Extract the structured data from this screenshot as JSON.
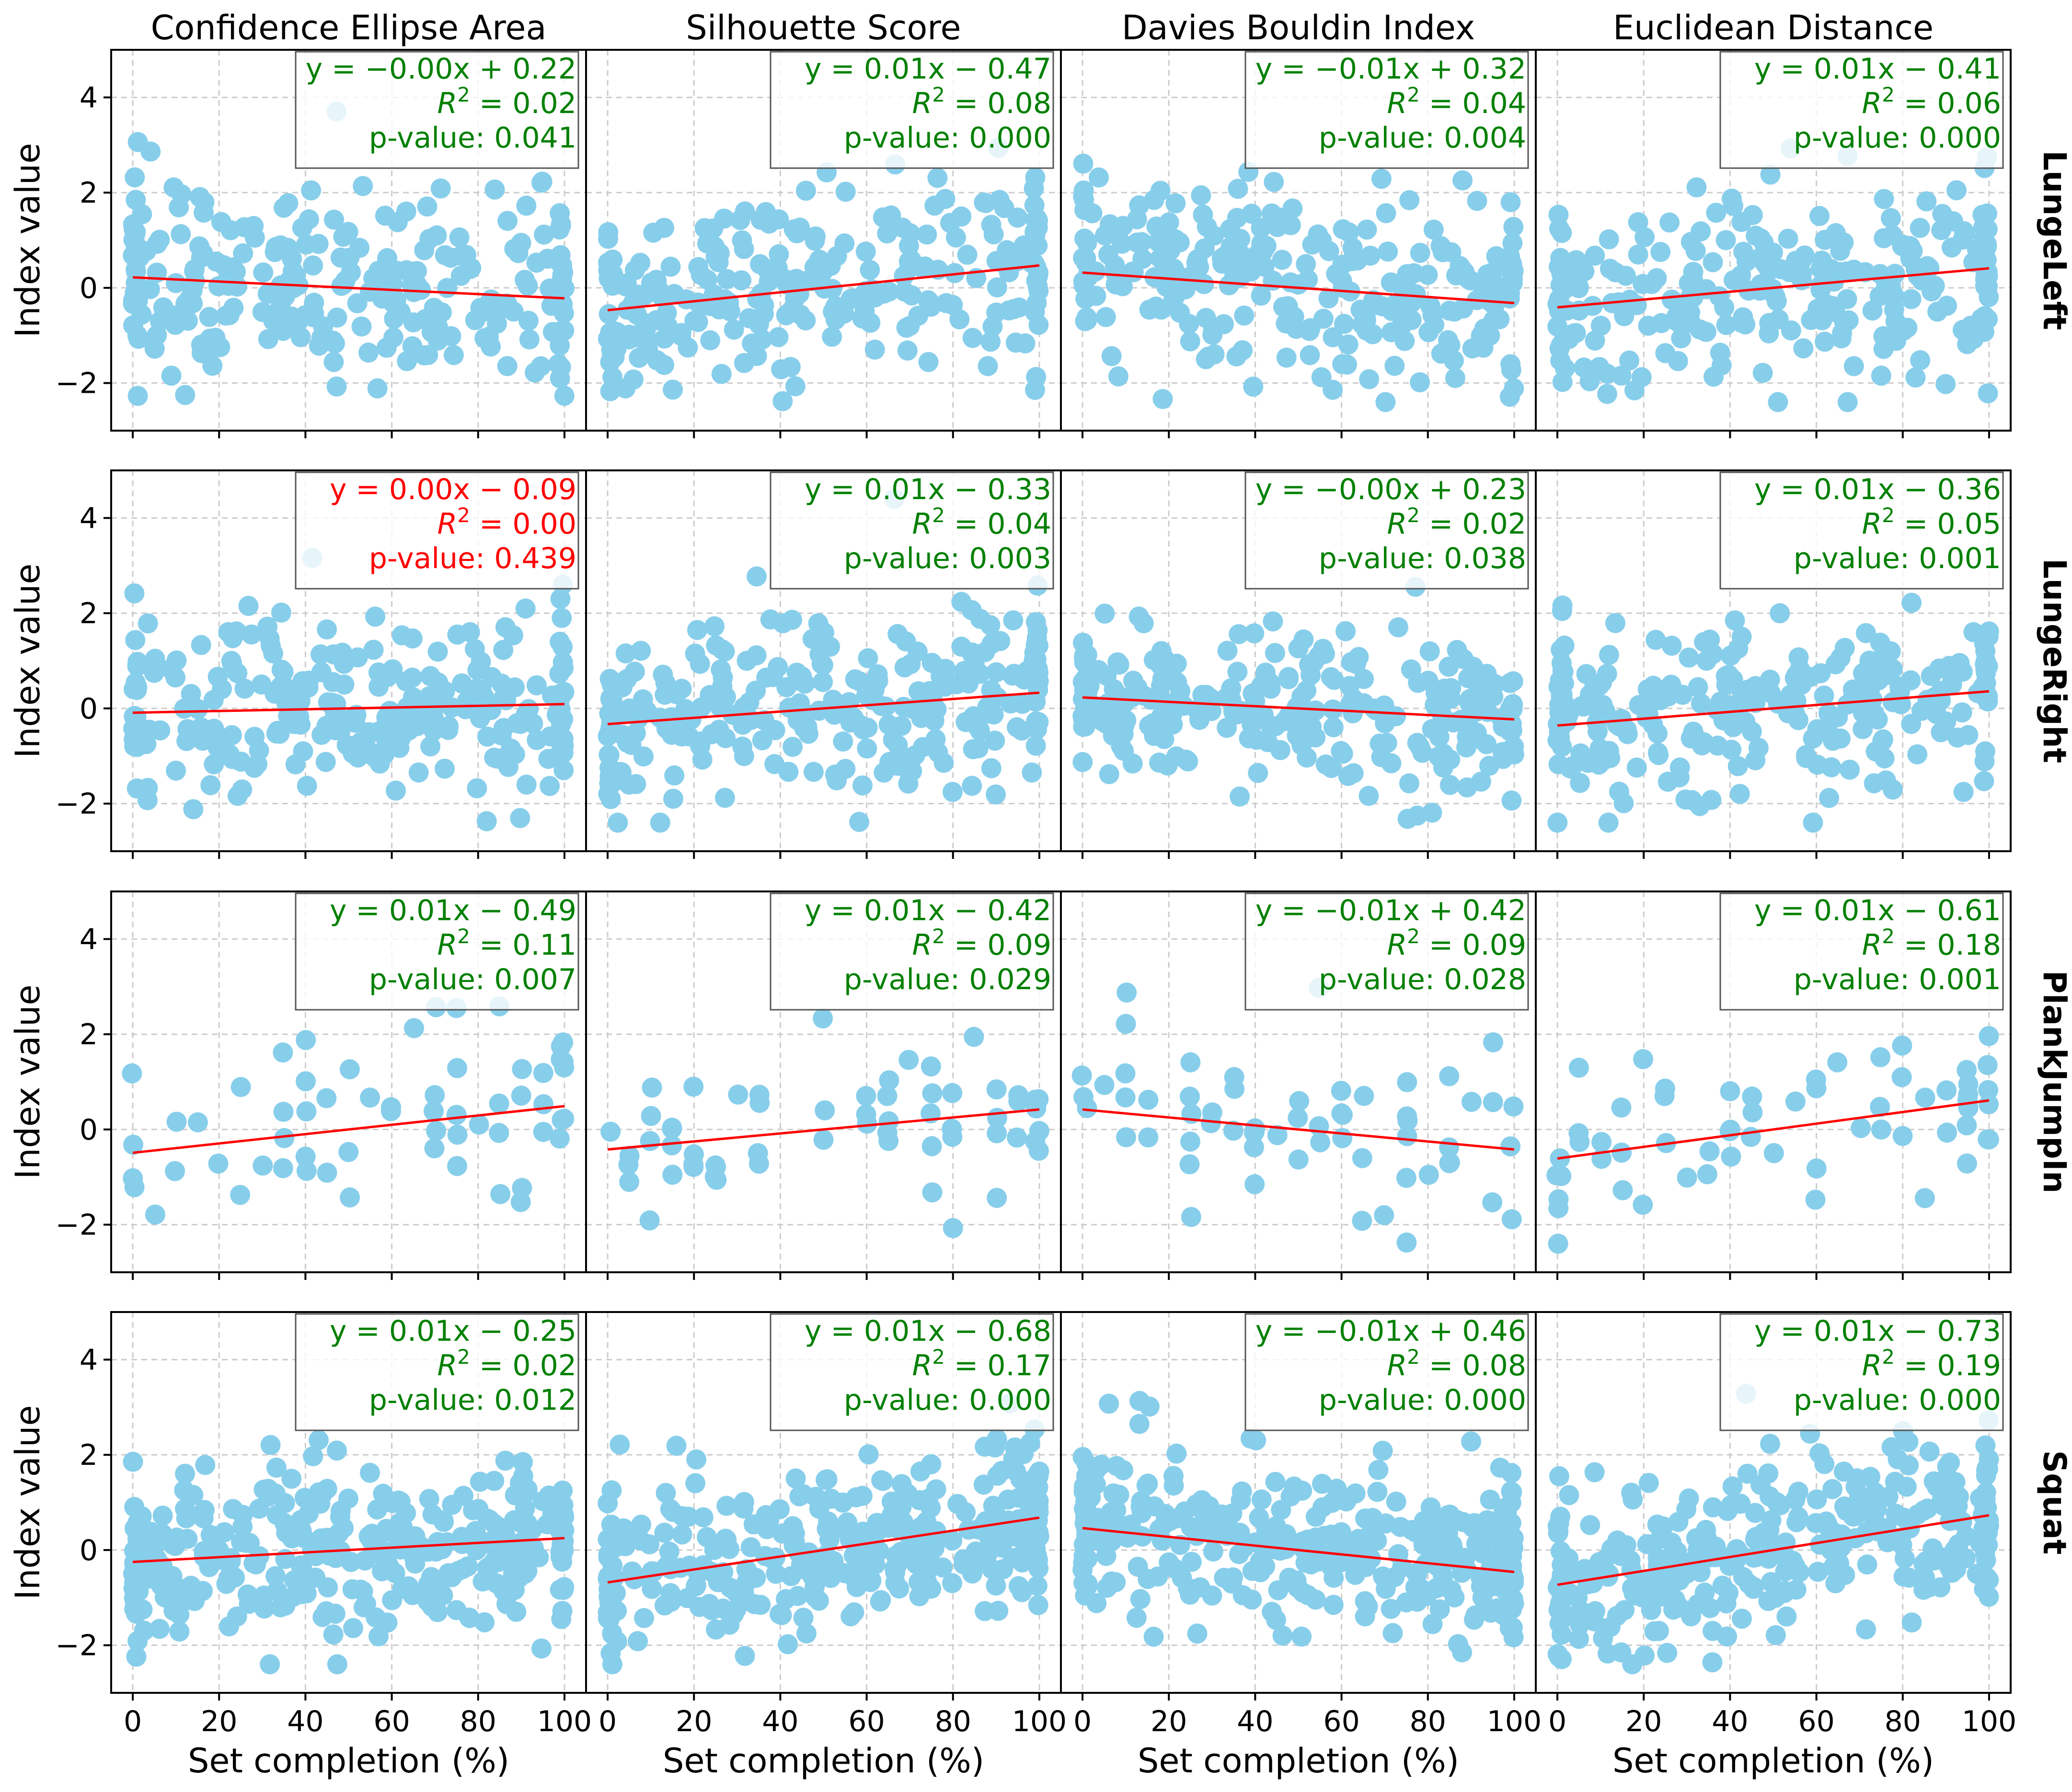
{
  "chart_data": {
    "type": "scatter",
    "title": "",
    "xlabel": "Set completion (%)",
    "ylabel": "Index value",
    "xlim": [
      -5,
      105
    ],
    "ylim": [
      -3,
      5
    ],
    "xticks": [
      0,
      20,
      40,
      60,
      80,
      100
    ],
    "yticks": [
      -2,
      0,
      2,
      4
    ],
    "grid": true,
    "point_color": "#87ceeb",
    "fit_line_color": "#ff0000",
    "significant_color": "#008000",
    "not_significant_color": "#ff0000",
    "columns": [
      "Confidence Ellipse Area",
      "Silhouette Score",
      "Davies Bouldin Index",
      "Euclidean Distance"
    ],
    "rows": [
      "LungeLeft",
      "LungeRight",
      "PlankJumpIn",
      "Squat"
    ],
    "panels": [
      {
        "row": 0,
        "col": 0,
        "slope": -0.0044,
        "intercept": 0.22,
        "equation": "y = −0.00x + 0.22",
        "r2": "0.02",
        "p_value": "p-value: 0.041",
        "significant": true,
        "n_points": 260,
        "spread": 0.95,
        "seed": 11
      },
      {
        "row": 0,
        "col": 1,
        "slope": 0.0094,
        "intercept": -0.47,
        "equation": "y = 0.01x − 0.47",
        "r2": "0.08",
        "p_value": "p-value: 0.000",
        "significant": true,
        "n_points": 260,
        "spread": 0.95,
        "seed": 12
      },
      {
        "row": 0,
        "col": 2,
        "slope": -0.0064,
        "intercept": 0.32,
        "equation": "y = −0.01x + 0.32",
        "r2": "0.04",
        "p_value": "p-value: 0.004",
        "significant": true,
        "n_points": 260,
        "spread": 0.9,
        "seed": 13
      },
      {
        "row": 0,
        "col": 3,
        "slope": 0.0082,
        "intercept": -0.41,
        "equation": "y = 0.01x − 0.41",
        "r2": "0.06",
        "p_value": "p-value: 0.000",
        "significant": true,
        "n_points": 260,
        "spread": 0.95,
        "seed": 14
      },
      {
        "row": 1,
        "col": 0,
        "slope": 0.0018,
        "intercept": -0.09,
        "equation": "y = 0.00x − 0.09",
        "r2": "0.00",
        "p_value": "p-value: 0.439",
        "significant": false,
        "n_points": 260,
        "spread": 0.95,
        "seed": 21
      },
      {
        "row": 1,
        "col": 1,
        "slope": 0.0066,
        "intercept": -0.33,
        "equation": "y = 0.01x − 0.33",
        "r2": "0.04",
        "p_value": "p-value: 0.003",
        "significant": true,
        "n_points": 260,
        "spread": 0.95,
        "seed": 22
      },
      {
        "row": 1,
        "col": 2,
        "slope": -0.0046,
        "intercept": 0.23,
        "equation": "y = −0.00x + 0.23",
        "r2": "0.02",
        "p_value": "p-value: 0.038",
        "significant": true,
        "n_points": 260,
        "spread": 0.75,
        "seed": 23
      },
      {
        "row": 1,
        "col": 3,
        "slope": 0.0072,
        "intercept": -0.36,
        "equation": "y = 0.01x − 0.36",
        "r2": "0.05",
        "p_value": "p-value: 0.001",
        "significant": true,
        "n_points": 260,
        "spread": 0.95,
        "seed": 24
      },
      {
        "row": 2,
        "col": 0,
        "slope": 0.0098,
        "intercept": -0.49,
        "equation": "y = 0.01x − 0.49",
        "r2": "0.11",
        "p_value": "p-value: 0.007",
        "significant": true,
        "n_points": 60,
        "spread": 0.8,
        "seed": 31
      },
      {
        "row": 2,
        "col": 1,
        "slope": 0.0084,
        "intercept": -0.42,
        "equation": "y = 0.01x − 0.42",
        "r2": "0.09",
        "p_value": "p-value: 0.029",
        "significant": true,
        "n_points": 60,
        "spread": 0.8,
        "seed": 32
      },
      {
        "row": 2,
        "col": 2,
        "slope": -0.0084,
        "intercept": 0.42,
        "equation": "y = −0.01x + 0.42",
        "r2": "0.09",
        "p_value": "p-value: 0.028",
        "significant": true,
        "n_points": 60,
        "spread": 0.8,
        "seed": 33
      },
      {
        "row": 2,
        "col": 3,
        "slope": 0.0122,
        "intercept": -0.61,
        "equation": "y = 0.01x − 0.61",
        "r2": "0.18",
        "p_value": "p-value: 0.001",
        "significant": true,
        "n_points": 60,
        "spread": 0.8,
        "seed": 34
      },
      {
        "row": 3,
        "col": 0,
        "slope": 0.005,
        "intercept": -0.25,
        "equation": "y = 0.01x − 0.25",
        "r2": "0.02",
        "p_value": "p-value: 0.012",
        "significant": true,
        "n_points": 330,
        "spread": 0.9,
        "seed": 41
      },
      {
        "row": 3,
        "col": 1,
        "slope": 0.0136,
        "intercept": -0.68,
        "equation": "y = 0.01x − 0.68",
        "r2": "0.17",
        "p_value": "p-value: 0.000",
        "significant": true,
        "n_points": 330,
        "spread": 0.85,
        "seed": 42
      },
      {
        "row": 3,
        "col": 2,
        "slope": -0.0092,
        "intercept": 0.46,
        "equation": "y = −0.01x + 0.46",
        "r2": "0.08",
        "p_value": "p-value: 0.000",
        "significant": true,
        "n_points": 330,
        "spread": 0.8,
        "seed": 43
      },
      {
        "row": 3,
        "col": 3,
        "slope": 0.0146,
        "intercept": -0.73,
        "equation": "y = 0.01x − 0.73",
        "r2": "0.19",
        "p_value": "p-value: 0.000",
        "significant": true,
        "n_points": 330,
        "spread": 0.85,
        "seed": 44
      }
    ]
  }
}
